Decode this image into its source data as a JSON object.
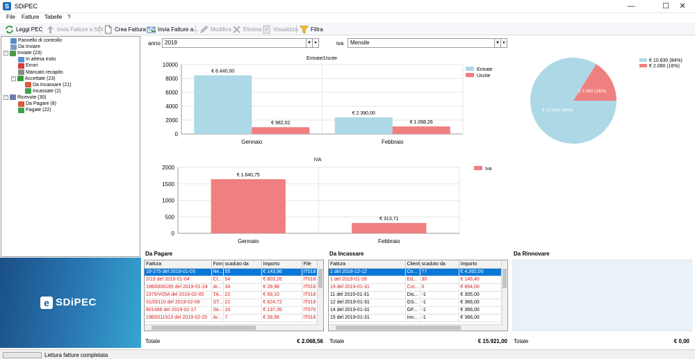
{
  "app": {
    "title": "SDiPEC"
  },
  "menu": [
    "File",
    "Fatture",
    "Tabelle",
    "?"
  ],
  "toolbar": {
    "leggi_pec": "Leggi PEC",
    "invia_sdi": "Invia Fatture a SDI",
    "crea_fattura": "Crea Fattura",
    "invia_fatture": "Invia Fatture a...",
    "modifica": "Modifica",
    "elimina": "Elimina",
    "visualizza": "Visualizza",
    "filtra": "Filtra"
  },
  "tree": [
    {
      "label": "Pannello di controllo",
      "level": 1,
      "icon": "control-panel-icon",
      "color": "#5a8dc8"
    },
    {
      "label": "Da Inviare",
      "level": 1,
      "icon": "folder-icon",
      "color": "#7a9cc4"
    },
    {
      "label": "Inviate (23)",
      "level": 1,
      "icon": "sent-icon",
      "color": "#4a9a4a",
      "expander": "−"
    },
    {
      "label": "In attesa esito",
      "level": 2,
      "icon": "hourglass-icon",
      "color": "#5b8fd0"
    },
    {
      "label": "Errori",
      "level": 2,
      "icon": "error-icon",
      "color": "#d83b3b"
    },
    {
      "label": "Mancato recapito",
      "level": 2,
      "icon": "check-icon",
      "color": "#8a8a8a"
    },
    {
      "label": "Accettate (23)",
      "level": 2,
      "icon": "accepted-icon",
      "color": "#2f9e3a",
      "expander": "−"
    },
    {
      "label": "Da Incassare (21)",
      "level": 3,
      "icon": "money-red-icon",
      "color": "#d85a3b"
    },
    {
      "label": "Incassate (2)",
      "level": 3,
      "icon": "money-green-icon",
      "color": "#3aa34a"
    },
    {
      "label": "Ricevute (30)",
      "level": 1,
      "icon": "received-icon",
      "color": "#6d7fa6",
      "expander": "−"
    },
    {
      "label": "Da Pagare (8)",
      "level": 2,
      "icon": "money-red-icon",
      "color": "#d85a3b"
    },
    {
      "label": "Pagate (22)",
      "level": 2,
      "icon": "money-green-icon",
      "color": "#3aa34a"
    }
  ],
  "logo": {
    "mark": "e",
    "brand": "SDiPEC"
  },
  "filters": {
    "anno_label": "anno",
    "anno_value": "2019",
    "iva_label": "iva",
    "iva_value": "Mensile"
  },
  "colors": {
    "entrate": "#add8e6",
    "uscite": "#f08080",
    "iva": "#f08080",
    "selection": "#0a78d7",
    "error_text": "#d81b1b"
  },
  "chart_data": [
    {
      "type": "bar",
      "title": "Entrate/Uscite",
      "categories": [
        "Gennaio",
        "Febbraio"
      ],
      "series": [
        {
          "name": "Entrate",
          "values": [
            8440.0,
            2390.0
          ],
          "labels": [
            "€ 8.440,00",
            "€ 2.390,00"
          ]
        },
        {
          "name": "Uscite",
          "values": [
            982.02,
            1098.26
          ],
          "labels": [
            "€ 982,02",
            "€ 1.098,26"
          ]
        }
      ],
      "ylim": [
        0,
        10000
      ],
      "yticks": [
        0,
        2000,
        4000,
        6000,
        8000,
        10000
      ],
      "grid": true,
      "legend": "top-right"
    },
    {
      "type": "bar",
      "title": "IVA",
      "categories": [
        "Gennaio",
        "Febbraio"
      ],
      "series": [
        {
          "name": "Iva",
          "values": [
            1640.75,
            313.71
          ],
          "labels": [
            "€ 1.640,75",
            "€ 313,71"
          ]
        }
      ],
      "ylim": [
        0,
        2000
      ],
      "yticks": [
        0,
        500,
        1000,
        1500,
        2000
      ],
      "grid": true,
      "legend": "top-right"
    },
    {
      "type": "pie",
      "slices": [
        {
          "name": "€ 10.830 (84%)",
          "value": 10830,
          "label": "€ 10.830 (84%)"
        },
        {
          "name": "€ 2.080 (16%)",
          "value": 2080,
          "label": "€ 2.080 (16%)"
        }
      ],
      "legend": "top-right"
    }
  ],
  "da_pagare": {
    "title": "Da Pagare",
    "columns": [
      "Fattura",
      "Forni",
      "scaduto da",
      "Importo",
      "File"
    ],
    "rows": [
      {
        "cells": [
          "19-275 del 2019-01-03",
          "Ne...",
          "55",
          "€ 143,96",
          "IT018"
        ],
        "style": "sel"
      },
      {
        "cells": [
          "2/19 del 2019-01-04",
          "Cl...",
          "54",
          "€ 803,26",
          "IT018"
        ],
        "style": "red"
      },
      {
        "cells": [
          "19B0006195 del 2019-01-24",
          "Ar...",
          "34",
          "€ 28,98",
          "IT018"
        ],
        "style": "red"
      },
      {
        "cells": [
          "2379/V05A del 2019-02-05",
          "TA...",
          "22",
          "€ 69,10",
          "IT018"
        ],
        "style": "red"
      },
      {
        "cells": [
          "01/00110 del 2019-02-06",
          "ST...",
          "21",
          "€ 824,72",
          "IT018"
        ],
        "style": "red"
      },
      {
        "cells": [
          "601498 del 2019-02-17",
          "Se...",
          "10",
          "€ 137,35",
          "IT070"
        ],
        "style": "red"
      },
      {
        "cells": [
          "19B0011913 del 2019-02-20",
          "Ar...",
          "7",
          "€ 28,98",
          "IT018"
        ],
        "style": "red"
      }
    ],
    "totale_label": "Totale",
    "totale_value": "€ 2.068,56"
  },
  "da_incassare": {
    "title": "Da Incassare",
    "columns": [
      "Fattura",
      "Clienti",
      "scaduto da",
      "Importo"
    ],
    "rows": [
      {
        "cells": [
          "1 del 2018-12-12",
          "Co...",
          "77",
          "€ 4.392,00"
        ],
        "style": "sel"
      },
      {
        "cells": [
          "1 del 2019-01-28",
          "Ed...",
          "30",
          "€ 146,40"
        ],
        "style": "red"
      },
      {
        "cells": [
          "19 del 2019-01-31",
          "Cot...",
          "0",
          "€ 854,00"
        ],
        "style": "red"
      },
      {
        "cells": [
          "11 del 2019-01-31",
          "Dis...",
          "-1",
          "€ 305,00"
        ],
        "style": ""
      },
      {
        "cells": [
          "12 del 2019-01-31",
          "GS...",
          "-1",
          "€ 366,00"
        ],
        "style": ""
      },
      {
        "cells": [
          "14 del 2019-01-31",
          "GF...",
          "-1",
          "€ 366,00"
        ],
        "style": ""
      },
      {
        "cells": [
          "15 del 2019-01-31",
          "Inn...",
          "-1",
          "€ 366,00"
        ],
        "style": ""
      }
    ],
    "totale_label": "Totale",
    "totale_value": "€ 15.921,00"
  },
  "da_rinnovare": {
    "title": "Da Rinnovare",
    "totale_label": "Totale",
    "totale_value": "€ 0,00"
  },
  "status": {
    "message": "Lettura fatture completata"
  }
}
